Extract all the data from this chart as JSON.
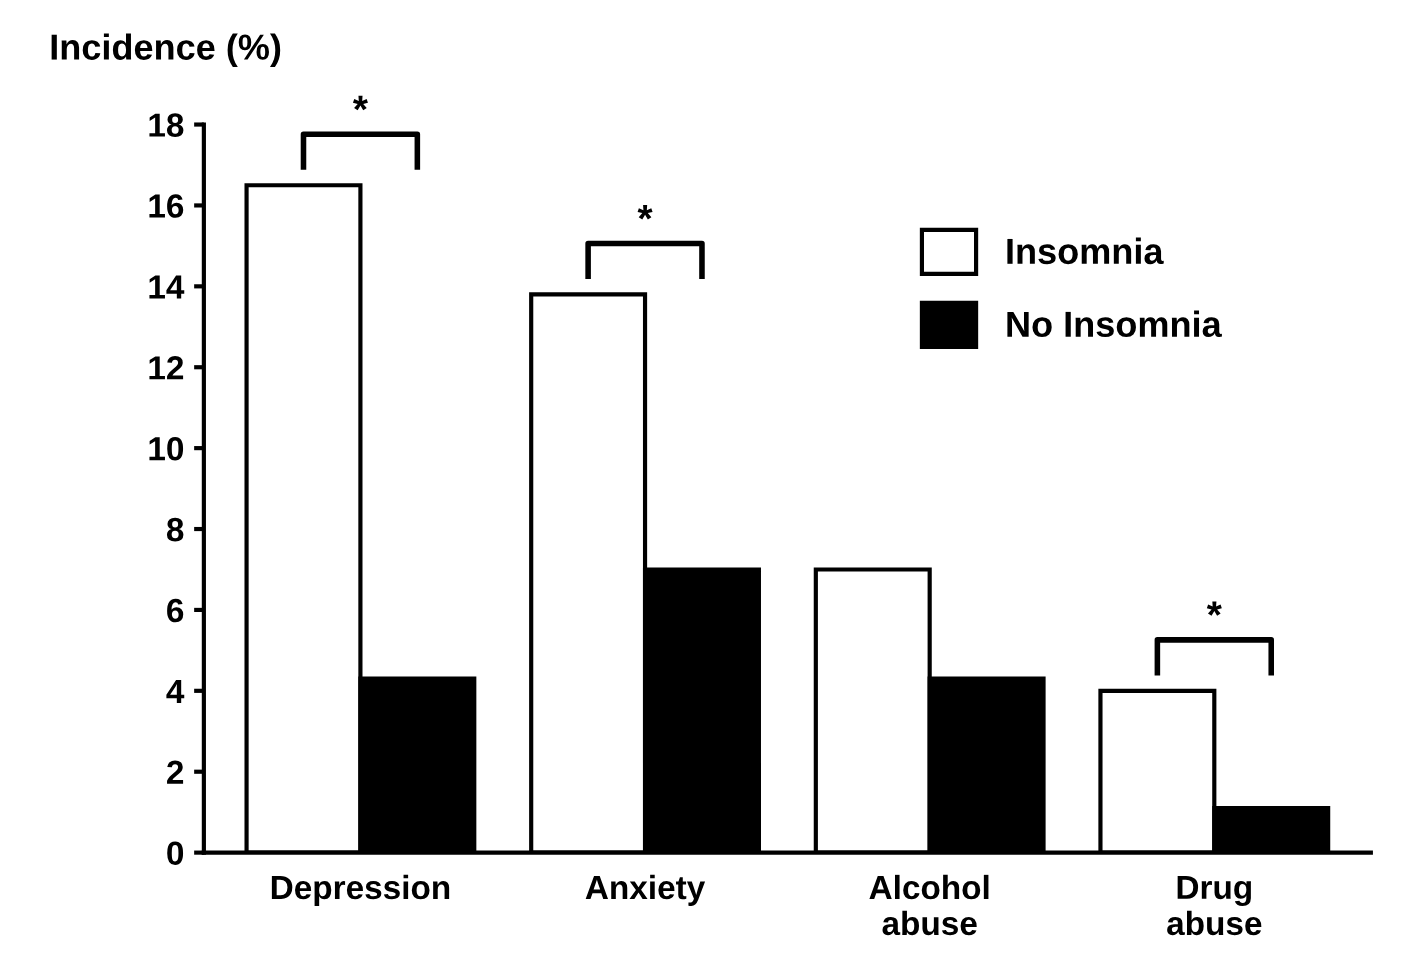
{
  "chart_data": {
    "type": "bar",
    "ylabel": "Incidence (%)",
    "categories": [
      "Depression",
      "Anxiety",
      "Alcohol\nabuse",
      "Drug\nabuse"
    ],
    "series": [
      {
        "name": "Insomnia",
        "color": "#ffffff",
        "values": [
          16.5,
          13.8,
          7.0,
          4.0
        ]
      },
      {
        "name": "No Insomnia",
        "color": "#000000",
        "values": [
          4.3,
          7.0,
          4.3,
          1.1
        ]
      }
    ],
    "ylim": [
      0,
      18
    ],
    "yticks": [
      0,
      2,
      4,
      6,
      8,
      10,
      12,
      14,
      16,
      18
    ],
    "annotations": [
      "*",
      "*",
      "*"
    ],
    "legend": "top right",
    "grid": false
  }
}
